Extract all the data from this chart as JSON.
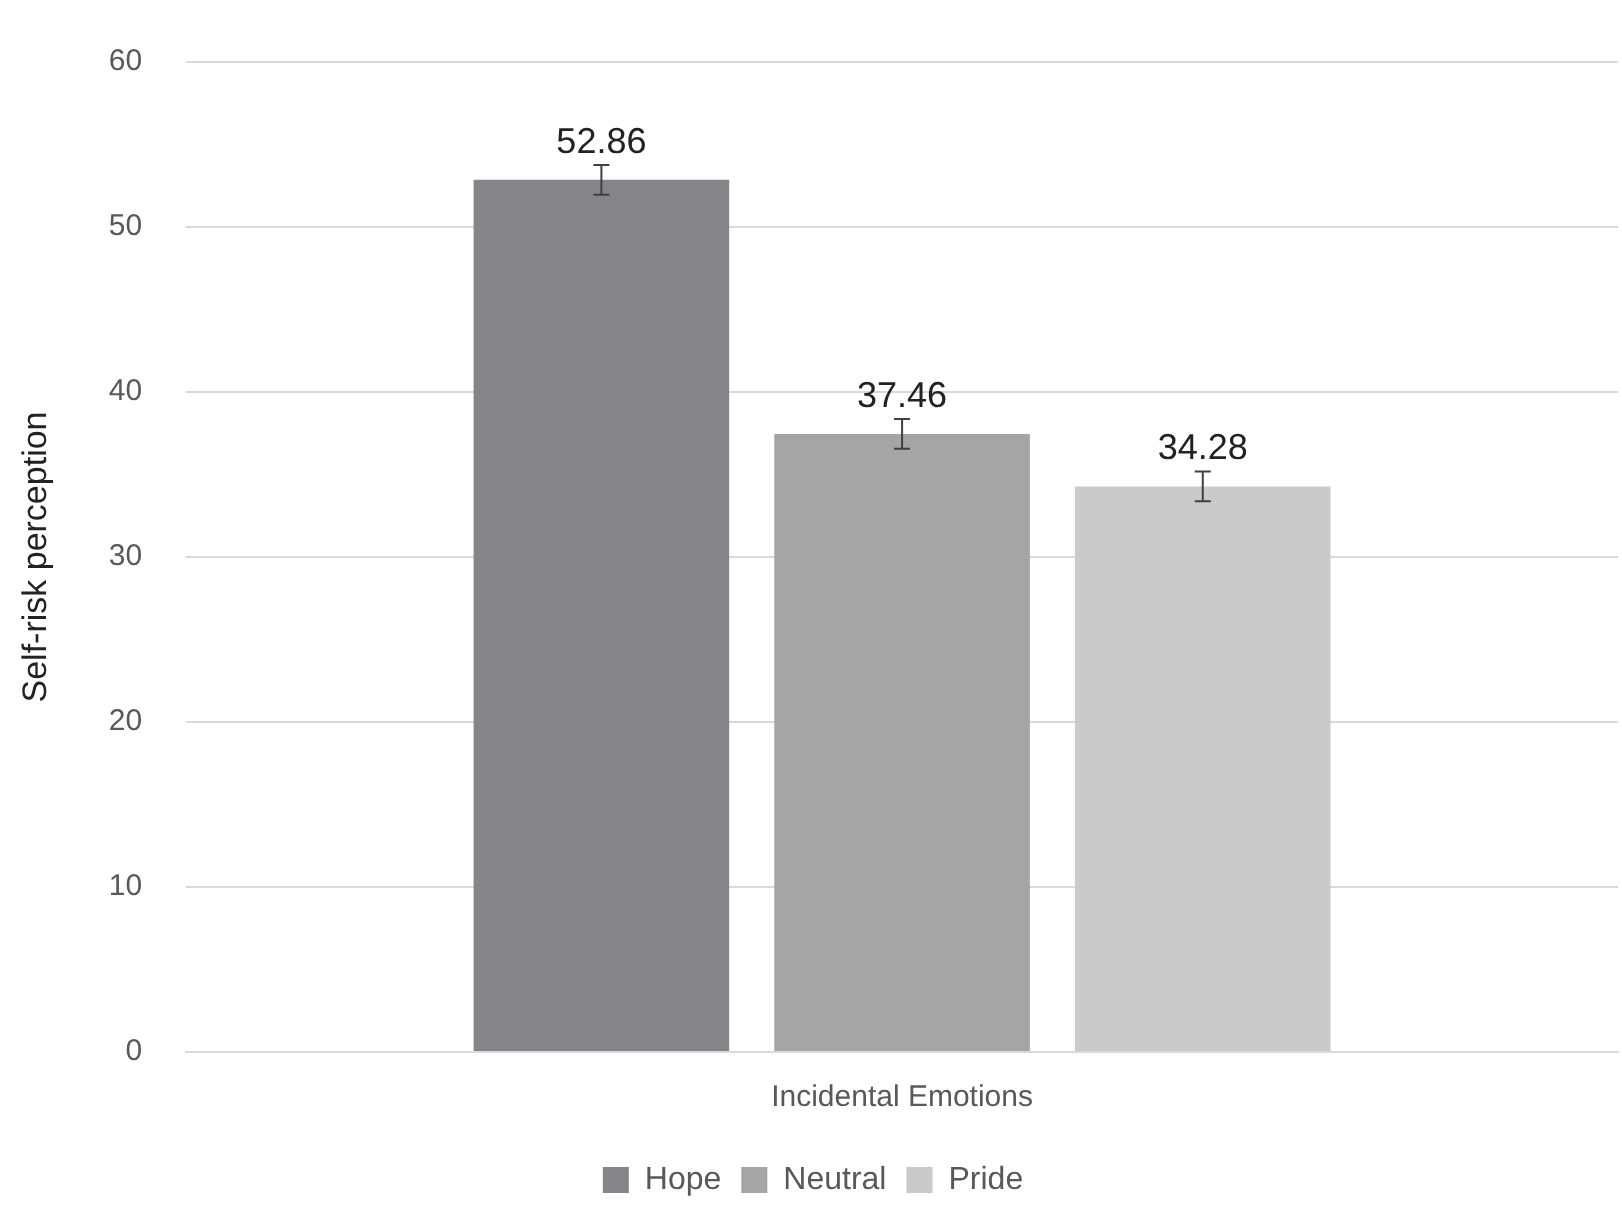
{
  "chart_data": {
    "type": "bar",
    "ylabel": "Self-risk perception",
    "categories": [
      "Incidental Emotions"
    ],
    "series": [
      {
        "name": "Hope",
        "color": "#858589",
        "values": [
          52.86
        ],
        "errors": [
          0.9
        ]
      },
      {
        "name": "Neutral",
        "color": "#a5a5a5",
        "values": [
          37.46
        ],
        "errors": [
          0.9
        ]
      },
      {
        "name": "Pride",
        "color": "#cacaca",
        "values": [
          34.28
        ],
        "errors": [
          0.9
        ]
      }
    ],
    "ylim": [
      0,
      60
    ],
    "yticks": [
      0,
      10,
      20,
      30,
      40,
      50,
      60
    ],
    "grid": "y",
    "legend": "bottom",
    "data_labels": true
  }
}
